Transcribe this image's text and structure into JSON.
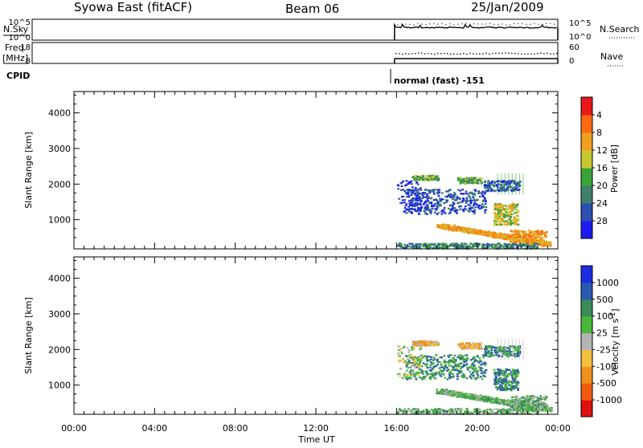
{
  "header": {
    "title": "Syowa East (fitACF)",
    "beam": "Beam 06",
    "date": "25/Jan/2009"
  },
  "strip_nsky": {
    "left_label": "N.Sky",
    "left_ticks": [
      "10^5",
      "10^0"
    ],
    "right_label": "N.Search",
    "right_ticks": [
      "10^5",
      "10^0"
    ]
  },
  "strip_freq": {
    "left_label_top": "Freq.",
    "left_label_bottom": "[MHz]",
    "left_ticks": [
      "18",
      "8"
    ],
    "right_label": "Nave",
    "right_ticks": [
      "60",
      "0"
    ]
  },
  "cpid": {
    "label": "CPID",
    "mode_text": "normal (fast) -151"
  },
  "x_axis": {
    "label": "Time UT",
    "tick_labels": [
      "00:00",
      "04:00",
      "08:00",
      "12:00",
      "16:00",
      "20:00",
      "00:00"
    ],
    "range_hours": [
      0,
      24
    ]
  },
  "chart_data": [
    {
      "type": "heatmap",
      "title": "",
      "xlabel": "Time UT",
      "ylabel": "Slant Range [km]",
      "ylim": [
        180,
        4600
      ],
      "y_ticks": [
        "1000",
        "2000",
        "3000",
        "4000"
      ],
      "y_tick_values": [
        1000,
        2000,
        3000,
        4000
      ],
      "colorbar": {
        "label": "Power [dB]",
        "tick_labels": [
          "4",
          "8",
          "12",
          "16",
          "20",
          "24",
          "28"
        ],
        "colors": [
          "#1c1cf0",
          "#2a4fb0",
          "#3f7f6e",
          "#3aa33a",
          "#c8c832",
          "#f0a020",
          "#ff6a10",
          "#e81818"
        ]
      },
      "data_coverage_hours": [
        15.9,
        24.0
      ]
    },
    {
      "type": "heatmap",
      "title": "",
      "xlabel": "Time UT",
      "ylabel": "Slant Range [km]",
      "ylim": [
        180,
        4600
      ],
      "y_ticks": [
        "1000",
        "2000",
        "3000",
        "4000"
      ],
      "y_tick_values": [
        1000,
        2000,
        3000,
        4000
      ],
      "colorbar": {
        "label": "Velocity [m s^-1]",
        "tick_labels": [
          "1000",
          "500",
          "100",
          "25",
          "-25",
          "-100",
          "-500",
          "-1000"
        ],
        "colors": [
          "#1c2ce0",
          "#2a5ab0",
          "#3a8a5a",
          "#4ab83a",
          "#b4b4b4",
          "#f0c040",
          "#f0901a",
          "#f05a10",
          "#e01010"
        ]
      },
      "data_coverage_hours": [
        15.9,
        24.0
      ]
    }
  ]
}
